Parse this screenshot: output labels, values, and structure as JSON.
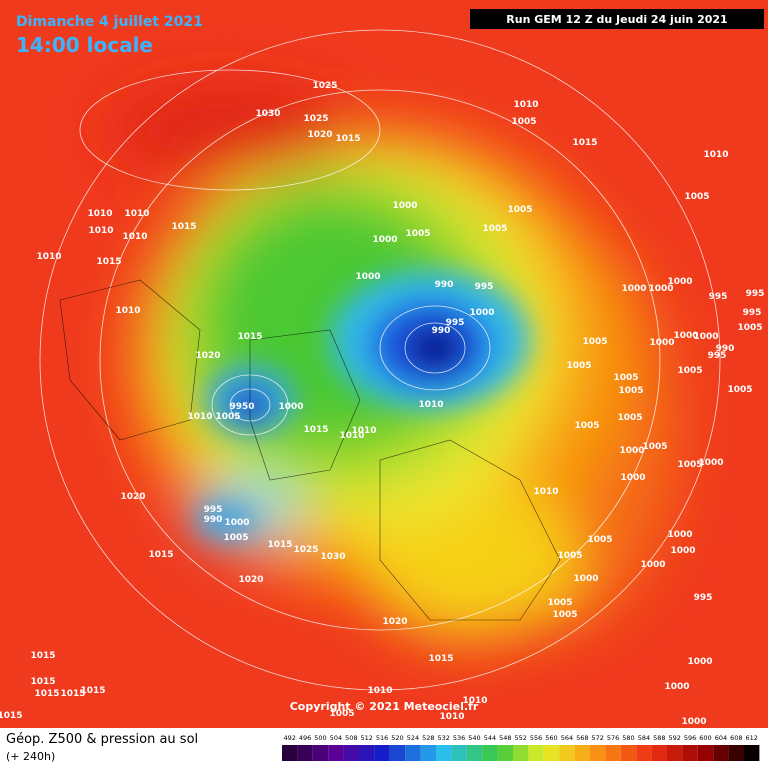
{
  "header": {
    "date": "Dimanche 4 juillet 2021",
    "time": "14:00 locale",
    "run": "Run GEM 12 Z du Jeudi 24 juin 2021"
  },
  "copyright": "Copyright © 2021 Meteociel.fr",
  "legend": {
    "title": "Géop. Z500 & pression au sol",
    "subtitle": "(+ 240h)",
    "scale": [
      492,
      496,
      500,
      504,
      508,
      512,
      516,
      520,
      524,
      528,
      532,
      536,
      540,
      544,
      548,
      552,
      556,
      560,
      564,
      568,
      572,
      576,
      580,
      584,
      588,
      592,
      596,
      600,
      604,
      608,
      612
    ]
  },
  "pressure_labels": [
    1025,
    1030,
    1025,
    1020,
    1015,
    1010,
    1005,
    1015,
    1010,
    1005,
    1010,
    1010,
    1015,
    1010,
    1010,
    1010,
    1015,
    1000,
    1000,
    1005,
    1005,
    1005,
    1000,
    990,
    995,
    1000,
    995,
    990,
    1010,
    1015,
    1020,
    1000,
    1000,
    1000,
    995,
    995,
    1005,
    1005,
    1000,
    1000,
    1000,
    995,
    990,
    1005,
    1005,
    1005,
    1005,
    1005,
    1000,
    1005,
    1000,
    1005,
    1000,
    1010,
    1000,
    9950,
    1005,
    1010,
    1015,
    1010,
    1010,
    1005,
    1020,
    1010,
    995,
    990,
    1000,
    1005,
    1015,
    1025,
    1030,
    1015,
    1005,
    1005,
    1000,
    1000,
    1000,
    1020,
    1000,
    1005,
    1005,
    995,
    1020,
    1015,
    1000,
    1010,
    1010,
    1005,
    1010,
    1015,
    1015,
    1015,
    1015,
    1015,
    1015,
    1000,
    1000,
    995,
    1005
  ]
}
